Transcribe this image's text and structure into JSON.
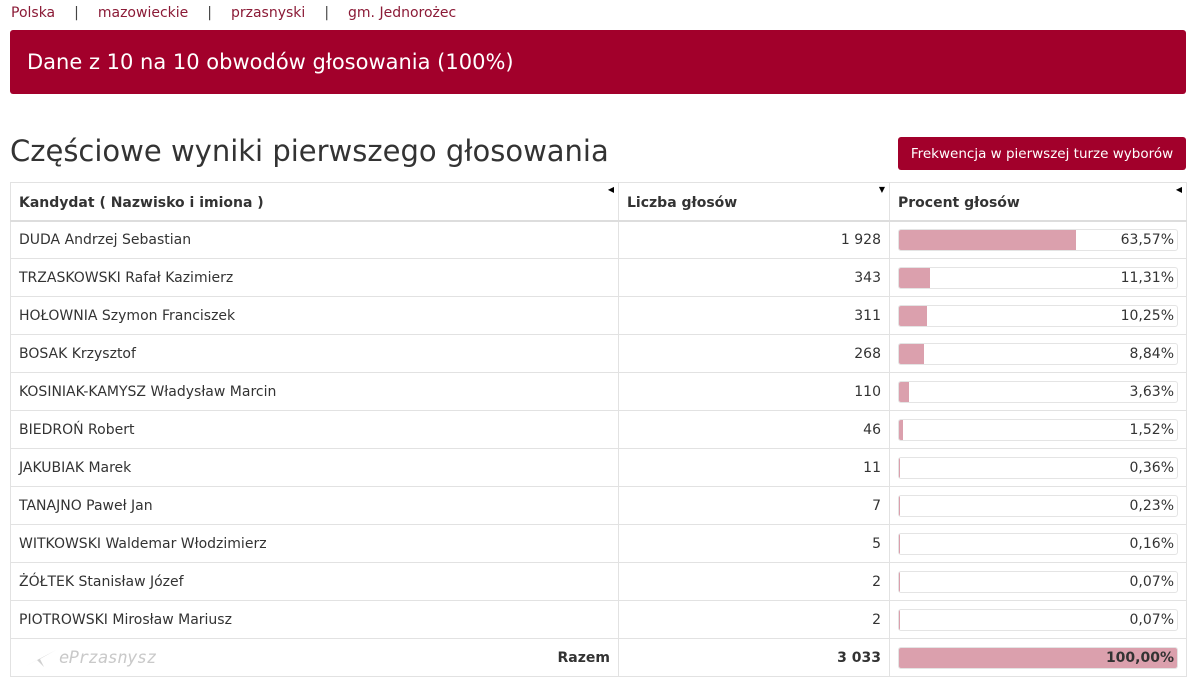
{
  "breadcrumb": [
    "Polska",
    "mazowieckie",
    "przasnyski",
    "gm. Jednorożec"
  ],
  "breadcrumb_separator": "|",
  "banner": "Dane z 10 na 10 obwodów głosowania (100%)",
  "page_title": "Częściowe wyniki pierwszego głosowania",
  "turnout_button": "Frekwencja w pierwszej turze wyborów",
  "table": {
    "headers": {
      "name": "Kandydat ( Nazwisko i imiona )",
      "votes": "Liczba głosów",
      "percent": "Procent głosów"
    },
    "sort_icons": {
      "name": "caret-left-icon",
      "votes": "caret-down-icon",
      "percent": "caret-left-icon"
    },
    "rows": [
      {
        "name": "DUDA Andrzej Sebastian",
        "votes": "1 928",
        "percent_label": "63,57%",
        "percent": 63.57
      },
      {
        "name": "TRZASKOWSKI Rafał Kazimierz",
        "votes": "343",
        "percent_label": "11,31%",
        "percent": 11.31
      },
      {
        "name": "HOŁOWNIA Szymon Franciszek",
        "votes": "311",
        "percent_label": "10,25%",
        "percent": 10.25
      },
      {
        "name": "BOSAK Krzysztof",
        "votes": "268",
        "percent_label": "8,84%",
        "percent": 8.84
      },
      {
        "name": "KOSINIAK-KAMYSZ Władysław Marcin",
        "votes": "110",
        "percent_label": "3,63%",
        "percent": 3.63
      },
      {
        "name": "BIEDROŃ Robert",
        "votes": "46",
        "percent_label": "1,52%",
        "percent": 1.52
      },
      {
        "name": "JAKUBIAK Marek",
        "votes": "11",
        "percent_label": "0,36%",
        "percent": 0.36
      },
      {
        "name": "TANAJNO Paweł Jan",
        "votes": "7",
        "percent_label": "0,23%",
        "percent": 0.23
      },
      {
        "name": "WITKOWSKI Waldemar Włodzimierz",
        "votes": "5",
        "percent_label": "0,16%",
        "percent": 0.16
      },
      {
        "name": "ŻÓŁTEK Stanisław Józef",
        "votes": "2",
        "percent_label": "0,07%",
        "percent": 0.07
      },
      {
        "name": "PIOTROWSKI Mirosław Mariusz",
        "votes": "2",
        "percent_label": "0,07%",
        "percent": 0.07
      }
    ],
    "total": {
      "label": "Razem",
      "votes": "3 033",
      "percent_label": "100,00%",
      "percent": 100
    }
  },
  "watermark": "ePrzasnysz",
  "colors": {
    "accent": "#a2002b",
    "link": "#8b1a36",
    "bar_fill": "#dba0ad"
  }
}
